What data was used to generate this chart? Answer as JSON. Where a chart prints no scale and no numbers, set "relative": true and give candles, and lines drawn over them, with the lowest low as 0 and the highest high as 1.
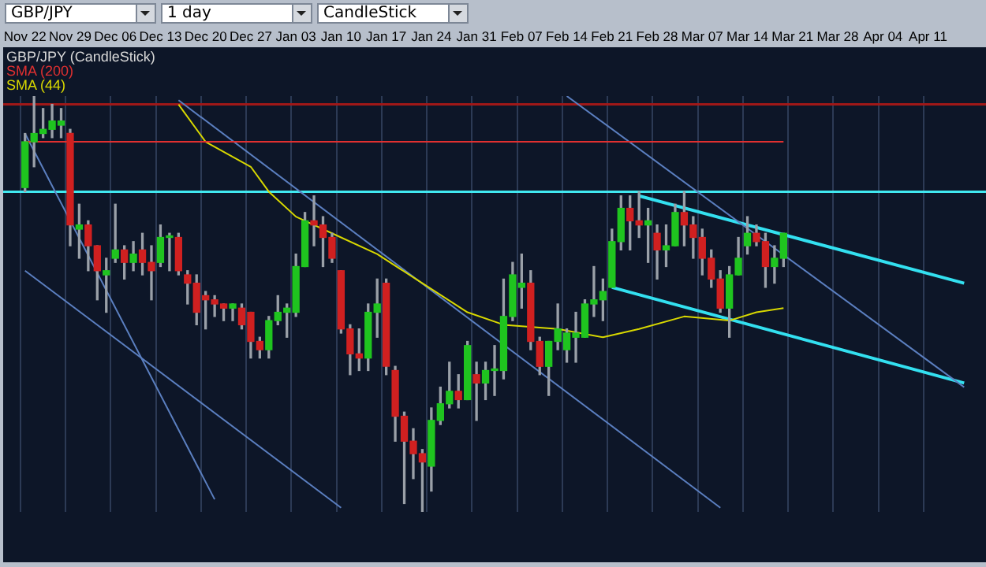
{
  "chart_data": {
    "type": "candlestick",
    "relative": true,
    "legend": "top left",
    "grid": "x",
    "legend_title": "GBP/JPY (CandleStick)",
    "annotations": [
      "GBP/JPY",
      "1 day",
      "CandleStick"
    ],
    "categories": [
      "Nov 22",
      null,
      null,
      null,
      null,
      "Nov 29",
      null,
      null,
      null,
      null,
      "Dec 06",
      null,
      null,
      null,
      null,
      "Dec 13",
      null,
      null,
      null,
      null,
      "Dec 20",
      null,
      null,
      null,
      null,
      "Dec 27",
      null,
      null,
      null,
      null,
      "Jan 03",
      null,
      null,
      null,
      null,
      "Jan 10",
      null,
      null,
      null,
      null,
      "Jan 17",
      null,
      null,
      null,
      null,
      "Jan 24",
      null,
      null,
      null,
      null,
      "Jan 31",
      null,
      null,
      null,
      null,
      "Feb 07",
      null,
      null,
      null,
      null,
      "Feb 14",
      null,
      null,
      null,
      null,
      "Feb 21",
      null,
      null,
      null,
      null,
      "Feb 28",
      null,
      null,
      null,
      null,
      "Mar 07",
      null,
      null,
      null,
      null,
      "Mar 14",
      null,
      null,
      null,
      null,
      "Mar 21",
      null,
      null,
      null,
      null,
      "Mar 28",
      null,
      null,
      null,
      null,
      "Apr 04",
      null,
      null,
      null,
      null,
      "Apr 11",
      null,
      null,
      null,
      null
    ],
    "ref_lines": [
      {
        "axis": "y",
        "value": 0.98,
        "color": "#a01818"
      },
      {
        "axis": "y",
        "value": 0.77,
        "color": "#40e8f0"
      }
    ],
    "ohlc": [
      [
        0.78,
        0.91,
        0.77,
        0.89
      ],
      [
        0.89,
        1.0,
        0.83,
        0.91
      ],
      [
        0.91,
        0.97,
        0.9,
        0.92
      ],
      [
        0.92,
        0.98,
        0.9,
        0.94
      ],
      [
        0.93,
        0.97,
        0.9,
        0.94
      ],
      [
        0.91,
        0.92,
        0.64,
        0.69
      ],
      [
        0.68,
        0.74,
        0.61,
        0.69
      ],
      [
        0.69,
        0.7,
        0.58,
        0.64
      ],
      [
        0.64,
        0.64,
        0.51,
        0.58
      ],
      [
        0.57,
        0.61,
        0.48,
        0.58
      ],
      [
        0.61,
        0.74,
        0.6,
        0.63
      ],
      [
        0.63,
        0.64,
        0.56,
        0.6
      ],
      [
        0.6,
        0.65,
        0.58,
        0.62
      ],
      [
        0.63,
        0.67,
        0.57,
        0.6
      ],
      [
        0.6,
        0.64,
        0.51,
        0.58
      ],
      [
        0.6,
        0.69,
        0.59,
        0.66
      ],
      [
        0.66,
        0.67,
        0.58,
        0.66
      ],
      [
        0.66,
        0.67,
        0.57,
        0.58
      ],
      [
        0.57,
        0.58,
        0.5,
        0.55
      ],
      [
        0.55,
        0.57,
        0.45,
        0.48
      ],
      [
        0.52,
        0.53,
        0.44,
        0.51
      ],
      [
        0.51,
        0.52,
        0.47,
        0.5
      ],
      [
        0.5,
        0.5,
        0.46,
        0.49
      ],
      [
        0.49,
        0.5,
        0.46,
        0.5
      ],
      [
        0.49,
        0.5,
        0.44,
        0.45
      ],
      [
        0.48,
        0.48,
        0.37,
        0.41
      ],
      [
        0.41,
        0.42,
        0.37,
        0.39
      ],
      [
        0.39,
        0.47,
        0.37,
        0.46
      ],
      [
        0.46,
        0.52,
        0.45,
        0.48
      ],
      [
        0.48,
        0.5,
        0.42,
        0.49
      ],
      [
        0.48,
        0.62,
        0.47,
        0.59
      ],
      [
        0.59,
        0.72,
        0.59,
        0.7
      ],
      [
        0.7,
        0.76,
        0.64,
        0.69
      ],
      [
        0.69,
        0.71,
        0.59,
        0.66
      ],
      [
        0.66,
        0.67,
        0.6,
        0.61
      ],
      [
        0.58,
        0.58,
        0.43,
        0.44
      ],
      [
        0.44,
        0.45,
        0.33,
        0.38
      ],
      [
        0.38,
        0.44,
        0.34,
        0.37
      ],
      [
        0.37,
        0.5,
        0.34,
        0.48
      ],
      [
        0.48,
        0.56,
        0.42,
        0.5
      ],
      [
        0.55,
        0.56,
        0.33,
        0.35
      ],
      [
        0.34,
        0.35,
        0.17,
        0.23
      ],
      [
        0.23,
        0.24,
        0.02,
        0.17
      ],
      [
        0.17,
        0.2,
        0.08,
        0.14
      ],
      [
        0.14,
        0.15,
        0.0,
        0.12
      ],
      [
        0.11,
        0.25,
        0.05,
        0.22
      ],
      [
        0.22,
        0.3,
        0.21,
        0.26
      ],
      [
        0.26,
        0.36,
        0.25,
        0.29
      ],
      [
        0.29,
        0.33,
        0.25,
        0.27
      ],
      [
        0.27,
        0.41,
        0.27,
        0.4
      ],
      [
        0.33,
        0.36,
        0.22,
        0.31
      ],
      [
        0.31,
        0.36,
        0.27,
        0.34
      ],
      [
        0.34,
        0.4,
        0.28,
        0.34
      ],
      [
        0.34,
        0.56,
        0.32,
        0.47
      ],
      [
        0.47,
        0.6,
        0.46,
        0.57
      ],
      [
        0.54,
        0.62,
        0.49,
        0.55
      ],
      [
        0.55,
        0.58,
        0.39,
        0.41
      ],
      [
        0.41,
        0.42,
        0.33,
        0.35
      ],
      [
        0.35,
        0.41,
        0.28,
        0.41
      ],
      [
        0.41,
        0.5,
        0.39,
        0.44
      ],
      [
        0.39,
        0.44,
        0.36,
        0.43
      ],
      [
        0.42,
        0.48,
        0.36,
        0.43
      ],
      [
        0.42,
        0.51,
        0.42,
        0.5
      ],
      [
        0.5,
        0.59,
        0.47,
        0.51
      ],
      [
        0.51,
        0.56,
        0.46,
        0.53
      ],
      [
        0.54,
        0.68,
        0.54,
        0.65
      ],
      [
        0.65,
        0.76,
        0.63,
        0.73
      ],
      [
        0.73,
        0.76,
        0.63,
        0.7
      ],
      [
        0.7,
        0.77,
        0.66,
        0.69
      ],
      [
        0.69,
        0.73,
        0.6,
        0.7
      ],
      [
        0.67,
        0.69,
        0.56,
        0.63
      ],
      [
        0.63,
        0.69,
        0.59,
        0.64
      ],
      [
        0.64,
        0.74,
        0.64,
        0.72
      ],
      [
        0.72,
        0.77,
        0.64,
        0.69
      ],
      [
        0.69,
        0.71,
        0.61,
        0.66
      ],
      [
        0.66,
        0.68,
        0.57,
        0.61
      ],
      [
        0.61,
        0.63,
        0.54,
        0.56
      ],
      [
        0.56,
        0.58,
        0.48,
        0.49
      ],
      [
        0.49,
        0.59,
        0.42,
        0.57
      ],
      [
        0.57,
        0.66,
        0.57,
        0.61
      ],
      [
        0.64,
        0.71,
        0.62,
        0.67
      ],
      [
        0.67,
        0.69,
        0.64,
        0.65
      ],
      [
        0.65,
        0.67,
        0.54,
        0.59
      ],
      [
        0.59,
        0.64,
        0.55,
        0.61
      ],
      [
        0.61,
        0.67,
        0.59,
        0.67
      ],
      null,
      null,
      null,
      null,
      null,
      null,
      null,
      null,
      null,
      null,
      null,
      null,
      null,
      null,
      null,
      null,
      null,
      null,
      null,
      null
    ],
    "series": [
      {
        "name": "SMA (200)",
        "type": "line",
        "color": "#e03030",
        "values": [
          0.89,
          0.89,
          0.89,
          0.89,
          0.89,
          0.89,
          0.89,
          0.89,
          0.89,
          0.89,
          0.89,
          0.89,
          0.89,
          0.89,
          0.89,
          0.89,
          0.89,
          0.89,
          0.89,
          0.89,
          0.89,
          0.89,
          0.89,
          0.89,
          0.89,
          0.89,
          0.89,
          0.89,
          0.89,
          0.89,
          0.89,
          0.89,
          0.89,
          0.89,
          0.89,
          0.89,
          0.89,
          0.89,
          0.89,
          0.89,
          0.89,
          0.89,
          0.89,
          0.89,
          0.89,
          0.89,
          0.89,
          0.89,
          0.89,
          0.89,
          0.89,
          0.89,
          0.89,
          0.89,
          0.89,
          0.89,
          0.89,
          0.89,
          0.89,
          0.89,
          0.89,
          0.89,
          0.89,
          0.89,
          0.89,
          0.89,
          0.89,
          0.89,
          0.89,
          0.89,
          0.89,
          0.89,
          0.89,
          0.89,
          0.89,
          0.89,
          0.89,
          0.89,
          0.89,
          0.89,
          0.89,
          0.89,
          0.89,
          0.89,
          0.89,
          null,
          null,
          null,
          null,
          null,
          null,
          null,
          null,
          null,
          null,
          null,
          null,
          null,
          null,
          null,
          null,
          null,
          null,
          null,
          null
        ]
      },
      {
        "name": "SMA (44)",
        "type": "line",
        "color": "#d8d800",
        "values": [
          null,
          null,
          null,
          null,
          null,
          null,
          null,
          null,
          null,
          null,
          null,
          null,
          null,
          null,
          null,
          null,
          null,
          0.98,
          null,
          null,
          0.89,
          null,
          null,
          null,
          null,
          0.83,
          null,
          0.77,
          null,
          null,
          0.71,
          null,
          null,
          null,
          0.67,
          null,
          null,
          null,
          null,
          0.62,
          null,
          null,
          null,
          null,
          0.55,
          null,
          null,
          null,
          null,
          0.48,
          null,
          null,
          null,
          0.45,
          null,
          null,
          null,
          null,
          null,
          0.44,
          null,
          null,
          null,
          null,
          0.42,
          null,
          null,
          null,
          0.44,
          null,
          null,
          null,
          null,
          0.47,
          null,
          null,
          null,
          null,
          0.46,
          null,
          null,
          0.48,
          null,
          null,
          0.49,
          null,
          null,
          null,
          null,
          null,
          null,
          null,
          null,
          null,
          null,
          null,
          null,
          null,
          null,
          null,
          null,
          null,
          null,
          null,
          null
        ]
      },
      {
        "type": "line",
        "color": "#5b7fc0",
        "values": [
          null,
          null,
          null,
          null,
          null,
          null,
          null,
          null,
          null,
          null,
          null,
          null,
          null,
          null,
          null,
          null,
          null,
          0.99,
          null,
          null,
          null,
          null,
          null,
          null,
          null,
          null,
          null,
          null,
          null,
          null,
          null,
          null,
          null,
          null,
          null,
          null,
          null,
          null,
          null,
          null,
          null,
          null,
          null,
          null,
          null,
          null,
          null,
          null,
          null,
          null,
          null,
          null,
          null,
          null,
          null,
          null,
          null,
          null,
          null,
          null,
          null,
          null,
          null,
          null,
          null,
          null,
          null,
          null,
          null,
          null,
          null,
          null,
          null,
          null,
          null,
          null,
          null,
          0.01,
          null,
          null,
          null,
          null,
          null,
          null,
          null,
          null,
          null,
          null,
          null,
          null,
          null,
          null,
          null,
          null,
          null,
          null,
          null,
          null,
          null,
          null,
          null,
          null,
          null,
          null,
          null
        ]
      },
      {
        "type": "line",
        "color": "#5b7fc0",
        "values": [
          null,
          null,
          null,
          null,
          null,
          null,
          null,
          null,
          null,
          null,
          null,
          null,
          null,
          null,
          null,
          null,
          null,
          null,
          null,
          null,
          null,
          null,
          null,
          null,
          null,
          null,
          null,
          null,
          null,
          null,
          null,
          null,
          null,
          null,
          null,
          null,
          null,
          null,
          null,
          null,
          null,
          null,
          null,
          null,
          null,
          null,
          null,
          null,
          null,
          null,
          null,
          null,
          null,
          null,
          null,
          null,
          null,
          null,
          null,
          null,
          1.0,
          null,
          null,
          null,
          null,
          null,
          null,
          null,
          null,
          null,
          null,
          null,
          null,
          null,
          null,
          null,
          null,
          null,
          null,
          null,
          null,
          null,
          null,
          null,
          null,
          null,
          null,
          null,
          null,
          null,
          null,
          null,
          null,
          null,
          null,
          null,
          null,
          null,
          null,
          null,
          null,
          null,
          null,
          null,
          0.3
        ]
      },
      {
        "type": "line",
        "color": "#5b7fc0",
        "values": [
          0.58,
          null,
          null,
          null,
          null,
          null,
          null,
          null,
          null,
          null,
          null,
          null,
          null,
          null,
          null,
          null,
          null,
          null,
          null,
          null,
          null,
          null,
          null,
          null,
          null,
          null,
          null,
          null,
          null,
          null,
          null,
          null,
          null,
          null,
          null,
          0.01,
          null,
          null,
          null,
          null,
          null,
          null,
          null,
          null,
          null,
          null,
          null,
          null,
          null,
          null,
          null,
          null,
          null,
          null,
          null,
          null,
          null,
          null,
          null,
          null,
          null,
          null,
          null,
          null,
          null,
          null,
          null,
          null,
          null,
          null,
          null,
          null,
          null,
          null,
          null,
          null,
          null,
          null,
          null,
          null,
          null,
          null,
          null,
          null,
          null,
          null,
          null,
          null,
          null,
          null,
          null,
          null,
          null,
          null,
          null,
          null,
          null,
          null,
          null,
          null,
          null,
          null,
          null,
          null,
          null
        ]
      },
      {
        "type": "line",
        "color": "#5b7fc0",
        "values": [
          0.91,
          null,
          null,
          null,
          null,
          null,
          null,
          null,
          null,
          null,
          null,
          null,
          null,
          null,
          null,
          null,
          null,
          null,
          null,
          null,
          null,
          0.03,
          null,
          null,
          null,
          null,
          null,
          null,
          null,
          null,
          null,
          null,
          null,
          null,
          null,
          null,
          null,
          null,
          null,
          null,
          null,
          null,
          null,
          null,
          null,
          null,
          null,
          null,
          null,
          null,
          null,
          null,
          null,
          null,
          null,
          null,
          null,
          null,
          null,
          null,
          null,
          null,
          null,
          null,
          null,
          null,
          null,
          null,
          null,
          null,
          null,
          null,
          null,
          null,
          null,
          null,
          null,
          null,
          null,
          null,
          null,
          null,
          null,
          null,
          null,
          null,
          null,
          null,
          null,
          null,
          null,
          null,
          null,
          null,
          null,
          null,
          null,
          null,
          null,
          null,
          null,
          null,
          null,
          null,
          null
        ]
      },
      {
        "type": "line",
        "color": "#33e0f0",
        "values": [
          null,
          null,
          null,
          null,
          null,
          null,
          null,
          null,
          null,
          null,
          null,
          null,
          null,
          null,
          null,
          null,
          null,
          null,
          null,
          null,
          null,
          null,
          null,
          null,
          null,
          null,
          null,
          null,
          null,
          null,
          null,
          null,
          null,
          null,
          null,
          null,
          null,
          null,
          null,
          null,
          null,
          null,
          null,
          null,
          null,
          null,
          null,
          null,
          null,
          null,
          null,
          null,
          null,
          null,
          null,
          null,
          null,
          null,
          null,
          null,
          null,
          null,
          null,
          null,
          null,
          null,
          null,
          null,
          0.76,
          null,
          null,
          null,
          null,
          null,
          null,
          null,
          null,
          null,
          null,
          null,
          null,
          null,
          null,
          null,
          null,
          null,
          null,
          null,
          null,
          null,
          null,
          null,
          null,
          null,
          null,
          null,
          null,
          null,
          null,
          null,
          null,
          null,
          null,
          null,
          0.55
        ]
      },
      {
        "type": "line",
        "color": "#33e0f0",
        "values": [
          null,
          null,
          null,
          null,
          null,
          null,
          null,
          null,
          null,
          null,
          null,
          null,
          null,
          null,
          null,
          null,
          null,
          null,
          null,
          null,
          null,
          null,
          null,
          null,
          null,
          null,
          null,
          null,
          null,
          null,
          null,
          null,
          null,
          null,
          null,
          null,
          null,
          null,
          null,
          null,
          null,
          null,
          null,
          null,
          null,
          null,
          null,
          null,
          null,
          null,
          null,
          null,
          null,
          null,
          null,
          null,
          null,
          null,
          null,
          null,
          null,
          null,
          null,
          null,
          null,
          0.54,
          null,
          null,
          null,
          null,
          null,
          null,
          null,
          null,
          null,
          null,
          null,
          null,
          null,
          null,
          null,
          null,
          null,
          null,
          null,
          null,
          null,
          null,
          null,
          null,
          null,
          null,
          null,
          null,
          null,
          null,
          null,
          null,
          null,
          null,
          null,
          null,
          null,
          null,
          0.31
        ]
      }
    ]
  }
}
